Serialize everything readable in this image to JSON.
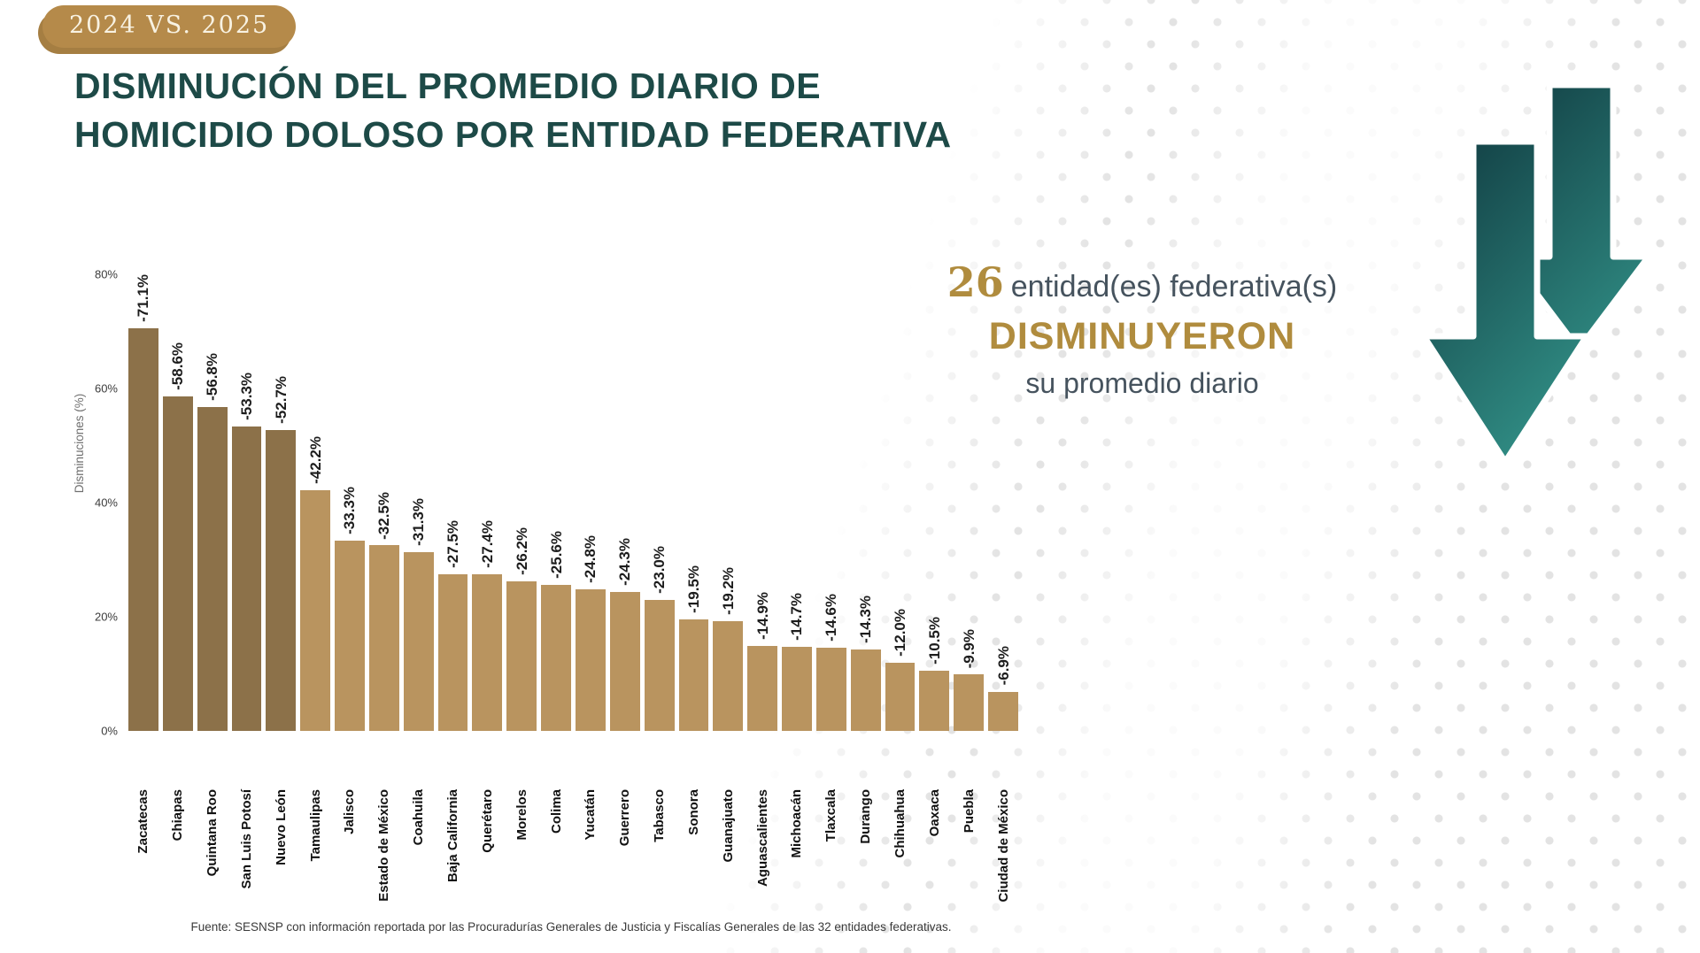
{
  "badge": {
    "label": "2024 VS. 2025"
  },
  "title": {
    "line1": "DISMINUCIÓN DEL PROMEDIO DIARIO DE",
    "line2": "HOMICIDIO DOLOSO POR ENTIDAD FEDERATIVA"
  },
  "annotation": {
    "count": "26",
    "line1_rest": "entidad(es) federativa(s)",
    "line2": "DISMINUYERON",
    "line3": "su promedio diario"
  },
  "icons": {
    "arrow": "double-down-arrow"
  },
  "colors": {
    "title_teal": "#1d4a47",
    "gold": "#b08c3e",
    "badge_bg": "#b58a4a",
    "bar_dark": "#8c7149",
    "bar_light": "#b9945f",
    "teal_dark": "#16474b",
    "teal_light": "#35998e",
    "annotation_text": "#46535e"
  },
  "footer": {
    "source": "Fuente: SESNSP con información reportada por las Procuradurías Generales de Justicia y Fiscalías Generales de las 32 entidades federativas."
  },
  "chart_data": {
    "type": "bar",
    "title": "Disminución del promedio diario de homicidio doloso por entidad federativa (2024 vs. 2025)",
    "xlabel": "",
    "ylabel": "Disminuciones (%)",
    "ylim": [
      0,
      80
    ],
    "yticks": [
      "0%",
      "20%",
      "40%",
      "60%",
      "80%"
    ],
    "grid": false,
    "legend": "none",
    "dark_bar_count": 5,
    "categories": [
      "Zacatecas",
      "Chiapas",
      "Quintana Roo",
      "San Luis Potosí",
      "Nuevo León",
      "Tamaulipas",
      "Jalisco",
      "Estado de México",
      "Coahuila",
      "Baja California",
      "Querétaro",
      "Morelos",
      "Colima",
      "Yucatán",
      "Guerrero",
      "Tabasco",
      "Sonora",
      "Guanajuato",
      "Aguascalientes",
      "Michoacán",
      "Tlaxcala",
      "Durango",
      "Chihuahua",
      "Oaxaca",
      "Puebla",
      "Ciudad de México"
    ],
    "values": [
      71.1,
      58.6,
      56.8,
      53.3,
      52.7,
      42.2,
      33.3,
      32.5,
      31.3,
      27.5,
      27.4,
      26.2,
      25.6,
      24.8,
      24.3,
      23.0,
      19.5,
      19.2,
      14.9,
      14.7,
      14.6,
      14.3,
      12.0,
      10.5,
      9.9,
      6.9
    ],
    "labels": [
      "-71.1%",
      "-58.6%",
      "-56.8%",
      "-53.3%",
      "-52.7%",
      "-42.2%",
      "-33.3%",
      "-32.5%",
      "-31.3%",
      "-27.5%",
      "-27.4%",
      "-26.2%",
      "-25.6%",
      "-24.8%",
      "-24.3%",
      "-23.0%",
      "-19.5%",
      "-19.2%",
      "-14.9%",
      "-14.7%",
      "-14.6%",
      "-14.3%",
      "-12.0%",
      "-10.5%",
      "-9.9%",
      "-6.9%"
    ]
  }
}
